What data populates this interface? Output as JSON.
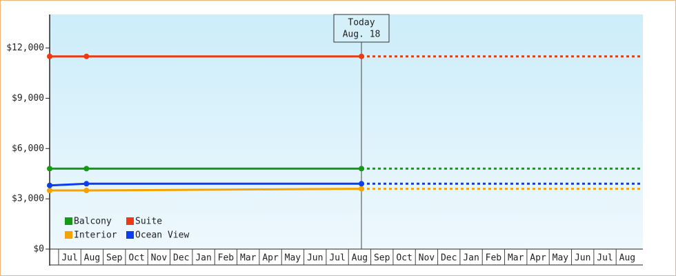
{
  "chart_data": {
    "type": "line",
    "x": [
      -0.4,
      1.25,
      13.58
    ],
    "xlim": [
      -0.4,
      26.2
    ],
    "xticks": [
      {
        "value": 0.5,
        "label": "Jul"
      },
      {
        "value": 1.5,
        "label": "Aug"
      },
      {
        "value": 2.5,
        "label": "Sep"
      },
      {
        "value": 3.5,
        "label": "Oct"
      },
      {
        "value": 4.5,
        "label": "Nov"
      },
      {
        "value": 5.5,
        "label": "Dec"
      },
      {
        "value": 6.5,
        "label": "Jan"
      },
      {
        "value": 7.5,
        "label": "Feb"
      },
      {
        "value": 8.5,
        "label": "Mar"
      },
      {
        "value": 9.5,
        "label": "Apr"
      },
      {
        "value": 10.5,
        "label": "May"
      },
      {
        "value": 11.5,
        "label": "Jun"
      },
      {
        "value": 12.5,
        "label": "Jul"
      },
      {
        "value": 13.5,
        "label": "Aug"
      },
      {
        "value": 14.5,
        "label": "Sep"
      },
      {
        "value": 15.5,
        "label": "Oct"
      },
      {
        "value": 16.5,
        "label": "Nov"
      },
      {
        "value": 17.5,
        "label": "Dec"
      },
      {
        "value": 18.5,
        "label": "Jan"
      },
      {
        "value": 19.5,
        "label": "Feb"
      },
      {
        "value": 20.5,
        "label": "Mar"
      },
      {
        "value": 21.5,
        "label": "Apr"
      },
      {
        "value": 22.5,
        "label": "May"
      },
      {
        "value": 23.5,
        "label": "Jun"
      },
      {
        "value": 24.5,
        "label": "Jul"
      },
      {
        "value": 25.5,
        "label": "Aug"
      }
    ],
    "ylim": [
      0,
      14000
    ],
    "yticks": [
      {
        "value": 0,
        "label": "$0"
      },
      {
        "value": 3000,
        "label": "$3,000"
      },
      {
        "value": 6000,
        "label": "$6,000"
      },
      {
        "value": 9000,
        "label": "$9,000"
      },
      {
        "value": 12000,
        "label": "$12,000"
      }
    ],
    "series": [
      {
        "name": "Balcony",
        "color": "#149a14",
        "values": [
          4800,
          4800,
          4800
        ]
      },
      {
        "name": "Suite",
        "color": "#ee3a12",
        "values": [
          11500,
          11500,
          11500
        ]
      },
      {
        "name": "Interior",
        "color": "#f5a300",
        "values": [
          3500,
          3500,
          3600
        ]
      },
      {
        "name": "Ocean View",
        "color": "#0a3cf0",
        "values": [
          3800,
          3900,
          3900
        ]
      }
    ],
    "annotation": {
      "x": 13.58,
      "lines": [
        "Today",
        "Aug. 18"
      ]
    },
    "legend": "lower-left"
  }
}
